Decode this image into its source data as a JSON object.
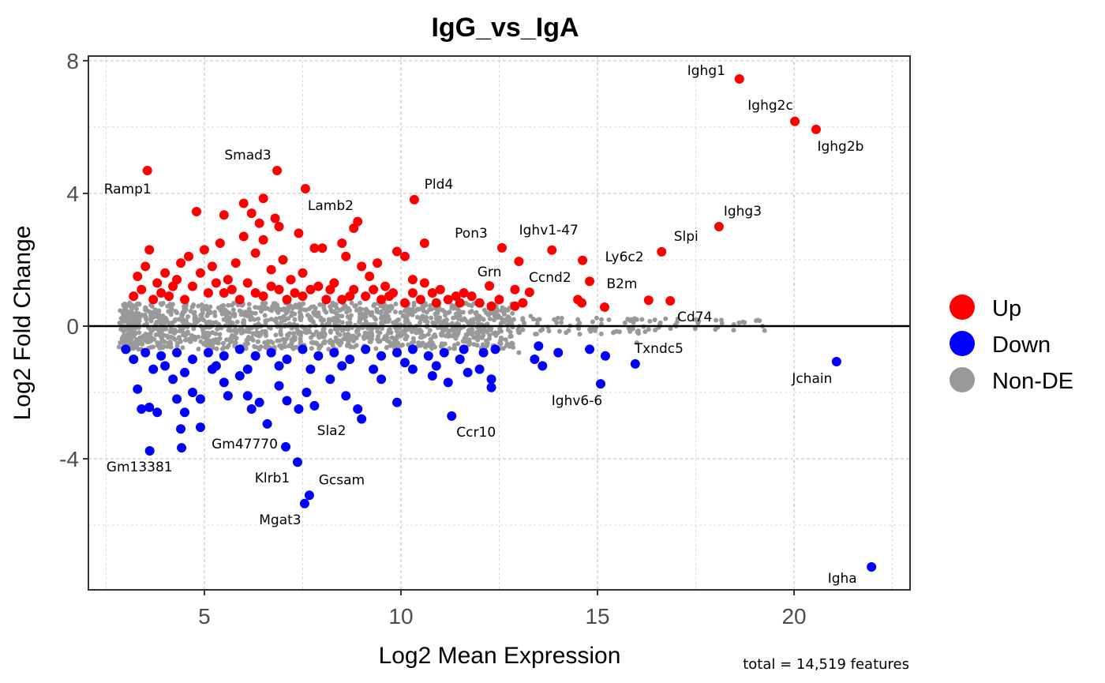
{
  "chart_data": {
    "type": "scatter",
    "title": "IgG_vs_IgA",
    "xlabel": "Log2 Mean Expression",
    "ylabel": "Log2 Fold Change",
    "caption": "total = 14,519 features",
    "xlim": [
      2.05,
      22.95
    ],
    "ylim": [
      -7.95,
      8.14
    ],
    "xticks": [
      5,
      10,
      15,
      20
    ],
    "yticks": [
      8,
      4,
      0,
      -4
    ],
    "xtick_labels": [
      "5",
      "10",
      "15",
      "20"
    ],
    "ytick_labels": [
      "8",
      "4",
      "0",
      "-4"
    ],
    "grid": true,
    "reference_line_y": 0,
    "legend": {
      "placement": "right",
      "entries": [
        {
          "name": "Up",
          "color": "#FF0000"
        },
        {
          "name": "Down",
          "color": "#0000FF"
        },
        {
          "name": "Non-DE",
          "color": "#999999"
        }
      ]
    },
    "labeled_points": [
      {
        "label": "Ighg1",
        "x": 18.61,
        "y": 7.45,
        "group": "Up"
      },
      {
        "label": "Ighg2c",
        "x": 20.02,
        "y": 6.17,
        "group": "Up"
      },
      {
        "label": "Ighg2b",
        "x": 20.56,
        "y": 5.93,
        "group": "Up"
      },
      {
        "label": "Ighg3",
        "x": 18.09,
        "y": 3.0,
        "group": "Up"
      },
      {
        "label": "Slpi",
        "x": 16.63,
        "y": 2.24,
        "group": "Up"
      },
      {
        "label": "Ly6c2",
        "x": 14.62,
        "y": 1.98,
        "group": "Up"
      },
      {
        "label": "B2m",
        "x": 15.18,
        "y": 0.57,
        "group": "Up"
      },
      {
        "label": "Cd74",
        "x": 16.85,
        "y": 0.76,
        "group": "Up"
      },
      {
        "label": "Ccnd2",
        "x": 13.27,
        "y": 1.02,
        "group": "Up"
      },
      {
        "label": "Grn",
        "x": 12.25,
        "y": 1.21,
        "group": "Up"
      },
      {
        "label": "Pon3",
        "x": 12.57,
        "y": 2.36,
        "group": "Up"
      },
      {
        "label": "Ighv1-47",
        "x": 13.84,
        "y": 2.29,
        "group": "Up"
      },
      {
        "label": "Pld4",
        "x": 10.34,
        "y": 3.81,
        "group": "Up"
      },
      {
        "label": "Lamb2",
        "x": 7.57,
        "y": 4.14,
        "group": "Up"
      },
      {
        "label": "Smad3",
        "x": 6.85,
        "y": 4.69,
        "group": "Up"
      },
      {
        "label": "Ramp1",
        "x": 3.55,
        "y": 4.69,
        "group": "Up"
      },
      {
        "label": "Txndc5",
        "x": 15.96,
        "y": -1.14,
        "group": "Down"
      },
      {
        "label": "Jchain",
        "x": 21.08,
        "y": -1.07,
        "group": "Down"
      },
      {
        "label": "Ighv6-6",
        "x": 15.08,
        "y": -1.74,
        "group": "Down"
      },
      {
        "label": "Ccr10",
        "x": 11.29,
        "y": -2.71,
        "group": "Down"
      },
      {
        "label": "Igha",
        "x": 21.97,
        "y": -7.26,
        "group": "Down"
      },
      {
        "label": "Gm13381",
        "x": 3.61,
        "y": -3.76,
        "group": "Down"
      },
      {
        "label": "Gm47770",
        "x": 4.42,
        "y": -3.67,
        "group": "Down"
      },
      {
        "label": "Sla2",
        "x": 7.07,
        "y": -3.64,
        "group": "Down"
      },
      {
        "label": "Klrb1",
        "x": 7.37,
        "y": -4.1,
        "group": "Down"
      },
      {
        "label": "Gcsam",
        "x": 7.67,
        "y": -5.1,
        "group": "Down"
      },
      {
        "label": "Mgat3",
        "x": 7.55,
        "y": -5.35,
        "group": "Down"
      }
    ],
    "up_points": [
      [
        3.3,
        1.5
      ],
      [
        3.5,
        1.8
      ],
      [
        3.6,
        2.3
      ],
      [
        3.8,
        1.3
      ],
      [
        4.0,
        1.6
      ],
      [
        4.2,
        1.2
      ],
      [
        4.4,
        1.9
      ],
      [
        4.6,
        2.1
      ],
      [
        4.8,
        3.45
      ],
      [
        4.9,
        1.6
      ],
      [
        5.0,
        2.3
      ],
      [
        5.2,
        1.8
      ],
      [
        5.4,
        2.5
      ],
      [
        5.5,
        3.35
      ],
      [
        5.6,
        1.4
      ],
      [
        5.8,
        1.9
      ],
      [
        6.0,
        3.7
      ],
      [
        6.0,
        2.7
      ],
      [
        6.2,
        3.4
      ],
      [
        6.3,
        2.2
      ],
      [
        6.4,
        3.1
      ],
      [
        6.5,
        3.85
      ],
      [
        6.5,
        2.6
      ],
      [
        6.7,
        1.7
      ],
      [
        6.8,
        3.25
      ],
      [
        6.9,
        3.0
      ],
      [
        7.0,
        2.0
      ],
      [
        7.2,
        1.4
      ],
      [
        7.4,
        2.8
      ],
      [
        7.5,
        1.6
      ],
      [
        7.8,
        2.35
      ],
      [
        8.0,
        2.35
      ],
      [
        8.2,
        1.1
      ],
      [
        8.5,
        2.5
      ],
      [
        8.6,
        2.1
      ],
      [
        8.8,
        2.95
      ],
      [
        8.9,
        3.15
      ],
      [
        9.0,
        1.8
      ],
      [
        9.2,
        1.5
      ],
      [
        9.4,
        1.9
      ],
      [
        9.6,
        1.2
      ],
      [
        9.9,
        2.25
      ],
      [
        10.1,
        2.1
      ],
      [
        10.6,
        2.5
      ],
      [
        10.3,
        1.4
      ],
      [
        10.6,
        1.3
      ],
      [
        11.0,
        1.1
      ],
      [
        11.4,
        0.9
      ],
      [
        11.6,
        1.0
      ],
      [
        12.0,
        0.7
      ],
      [
        12.3,
        0.6
      ],
      [
        12.9,
        0.6
      ],
      [
        13.1,
        0.7
      ],
      [
        12.9,
        1.1
      ],
      [
        13.0,
        1.95
      ],
      [
        14.5,
        0.8
      ],
      [
        14.6,
        0.7
      ],
      [
        14.8,
        1.35
      ],
      [
        16.3,
        0.78
      ],
      [
        3.2,
        0.9
      ],
      [
        3.4,
        1.1
      ],
      [
        3.7,
        0.8
      ],
      [
        4.1,
        0.9
      ],
      [
        4.5,
        0.8
      ],
      [
        4.7,
        1.2
      ],
      [
        5.1,
        1.0
      ],
      [
        5.5,
        1.0
      ],
      [
        5.9,
        0.8
      ],
      [
        6.1,
        1.3
      ],
      [
        6.5,
        0.9
      ],
      [
        6.9,
        1.1
      ],
      [
        7.1,
        0.8
      ],
      [
        7.5,
        0.9
      ],
      [
        7.9,
        1.2
      ],
      [
        8.1,
        0.8
      ],
      [
        8.5,
        0.8
      ],
      [
        8.8,
        1.1
      ],
      [
        9.1,
        0.9
      ],
      [
        9.5,
        0.8
      ],
      [
        9.8,
        1.0
      ],
      [
        10.1,
        0.7
      ],
      [
        10.5,
        0.8
      ],
      [
        10.9,
        0.7
      ],
      [
        11.5,
        0.7
      ],
      [
        11.8,
        0.9
      ],
      [
        12.5,
        0.8
      ],
      [
        3.9,
        1.0
      ],
      [
        4.3,
        1.4
      ],
      [
        5.3,
        1.3
      ],
      [
        5.7,
        1.1
      ],
      [
        6.3,
        1.0
      ],
      [
        6.7,
        1.2
      ],
      [
        7.3,
        1.0
      ],
      [
        7.7,
        1.1
      ],
      [
        8.3,
        1.3
      ],
      [
        8.7,
        0.9
      ],
      [
        9.3,
        1.1
      ],
      [
        9.7,
        0.9
      ],
      [
        10.3,
        1.0
      ],
      [
        10.8,
        1.0
      ],
      [
        11.2,
        0.8
      ]
    ],
    "down_points": [
      [
        3.0,
        -0.7
      ],
      [
        3.2,
        -1.0
      ],
      [
        3.3,
        -1.9
      ],
      [
        3.4,
        -2.5
      ],
      [
        3.6,
        -2.45
      ],
      [
        3.8,
        -2.6
      ],
      [
        4.0,
        -1.2
      ],
      [
        4.2,
        -1.6
      ],
      [
        4.3,
        -2.2
      ],
      [
        4.4,
        -3.1
      ],
      [
        4.5,
        -2.6
      ],
      [
        4.7,
        -2.0
      ],
      [
        4.9,
        -2.2
      ],
      [
        4.9,
        -3.05
      ],
      [
        5.2,
        -1.3
      ],
      [
        5.5,
        -1.7
      ],
      [
        5.6,
        -2.1
      ],
      [
        5.9,
        -1.5
      ],
      [
        6.1,
        -2.1
      ],
      [
        6.2,
        -2.5
      ],
      [
        6.4,
        -2.3
      ],
      [
        6.6,
        -2.95
      ],
      [
        6.9,
        -1.8
      ],
      [
        7.1,
        -2.25
      ],
      [
        7.4,
        -2.5
      ],
      [
        7.6,
        -2.0
      ],
      [
        7.8,
        -2.4
      ],
      [
        8.2,
        -1.6
      ],
      [
        8.6,
        -2.1
      ],
      [
        8.9,
        -2.5
      ],
      [
        9.0,
        -2.8
      ],
      [
        9.5,
        -1.6
      ],
      [
        9.9,
        -2.3
      ],
      [
        10.3,
        -1.3
      ],
      [
        10.8,
        -1.5
      ],
      [
        11.2,
        -1.7
      ],
      [
        11.5,
        -1.0
      ],
      [
        12.0,
        -1.3
      ],
      [
        12.3,
        -1.6
      ],
      [
        12.3,
        -1.85
      ],
      [
        13.5,
        -0.6
      ],
      [
        13.4,
        -1.0
      ],
      [
        13.6,
        -1.2
      ],
      [
        14.0,
        -0.8
      ],
      [
        14.8,
        -0.7
      ],
      [
        15.2,
        -0.9
      ],
      [
        3.5,
        -0.8
      ],
      [
        3.9,
        -0.9
      ],
      [
        4.3,
        -0.8
      ],
      [
        4.7,
        -1.0
      ],
      [
        5.1,
        -0.8
      ],
      [
        5.5,
        -0.9
      ],
      [
        5.9,
        -0.7
      ],
      [
        6.3,
        -0.9
      ],
      [
        6.7,
        -0.8
      ],
      [
        7.1,
        -1.0
      ],
      [
        7.5,
        -0.7
      ],
      [
        7.9,
        -0.9
      ],
      [
        8.3,
        -0.8
      ],
      [
        8.7,
        -1.0
      ],
      [
        9.1,
        -0.7
      ],
      [
        9.5,
        -0.9
      ],
      [
        9.9,
        -0.8
      ],
      [
        10.3,
        -0.7
      ],
      [
        10.7,
        -0.9
      ],
      [
        11.1,
        -0.8
      ],
      [
        11.6,
        -0.7
      ],
      [
        12.1,
        -0.8
      ],
      [
        12.4,
        -0.7
      ],
      [
        3.7,
        -1.3
      ],
      [
        4.5,
        -1.4
      ],
      [
        5.3,
        -1.2
      ],
      [
        6.1,
        -1.3
      ],
      [
        6.9,
        -1.2
      ],
      [
        7.7,
        -1.3
      ],
      [
        8.5,
        -1.2
      ],
      [
        9.3,
        -1.3
      ],
      [
        10.1,
        -1.1
      ],
      [
        10.9,
        -1.2
      ],
      [
        11.7,
        -1.4
      ]
    ],
    "nonde_points": [
      [
        3.0,
        0.3
      ],
      [
        3.2,
        -0.3
      ],
      [
        3.5,
        0.5
      ],
      [
        3.8,
        -0.5
      ],
      [
        4.0,
        0.1
      ],
      [
        4.3,
        0.4
      ],
      [
        4.6,
        -0.4
      ],
      [
        4.9,
        0.2
      ],
      [
        5.2,
        -0.2
      ],
      [
        5.5,
        0.5
      ],
      [
        5.8,
        -0.5
      ],
      [
        6.1,
        0.3
      ],
      [
        6.4,
        -0.3
      ],
      [
        6.7,
        0.5
      ],
      [
        7.0,
        -0.4
      ],
      [
        7.3,
        0.2
      ],
      [
        7.6,
        -0.2
      ],
      [
        7.9,
        0.4
      ],
      [
        8.2,
        -0.5
      ],
      [
        8.5,
        0.3
      ],
      [
        8.8,
        -0.3
      ],
      [
        9.1,
        0.4
      ],
      [
        9.4,
        -0.4
      ],
      [
        9.7,
        0.2
      ],
      [
        10.0,
        -0.2
      ],
      [
        10.3,
        0.4
      ],
      [
        10.6,
        -0.3
      ],
      [
        10.9,
        0.3
      ],
      [
        11.2,
        -0.3
      ],
      [
        11.5,
        0.3
      ],
      [
        11.8,
        -0.2
      ],
      [
        12.1,
        0.2
      ],
      [
        12.4,
        -0.2
      ],
      [
        12.7,
        0.2
      ],
      [
        13.0,
        -0.2
      ],
      [
        13.3,
        0.3
      ],
      [
        13.6,
        -0.1
      ],
      [
        13.9,
        0.2
      ],
      [
        14.2,
        -0.2
      ],
      [
        14.5,
        0.2
      ],
      [
        14.8,
        -0.1
      ],
      [
        15.1,
        0.2
      ],
      [
        15.4,
        -0.2
      ],
      [
        15.7,
        0.1
      ],
      [
        16.0,
        0.2
      ],
      [
        16.3,
        -0.1
      ],
      [
        16.6,
        0.1
      ],
      [
        17.0,
        0.0
      ],
      [
        17.5,
        0.2
      ],
      [
        18.0,
        -0.1
      ],
      [
        18.6,
        0.1
      ],
      [
        19.2,
        0.0
      ],
      [
        3.1,
        0.7
      ],
      [
        3.1,
        -0.7
      ],
      [
        13.0,
        -0.8
      ],
      [
        16.0,
        -0.5
      ]
    ]
  }
}
